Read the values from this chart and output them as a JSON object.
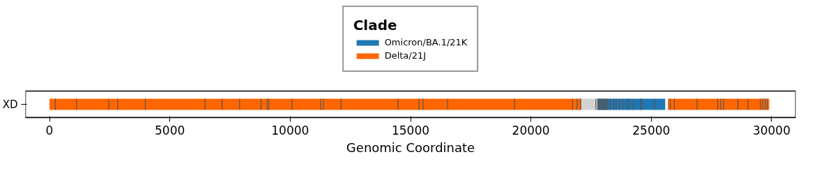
{
  "chart_data": {
    "type": "bar",
    "orientation": "horizontal",
    "categories": [
      "XD"
    ],
    "series": [
      {
        "name": "Omicron/BA.1/21K",
        "color": "#1f77b4",
        "values": [
          2810
        ],
        "base": [
          22770
        ]
      },
      {
        "name": "Delta/21J",
        "color": "#ff6600",
        "values": [
          22100
        ],
        "base": [
          0
        ]
      },
      {
        "color": "#d3d3d3",
        "values": [
          670
        ],
        "base": [
          22100
        ]
      },
      {
        "color": "#ff6600",
        "values": [
          4210
        ],
        "base": [
          25690
        ]
      }
    ],
    "ref_lines": [
      {
        "axis": "x",
        "value": 240,
        "color": "#555555"
      },
      {
        "axis": "x",
        "value": 1120,
        "color": "#555555"
      },
      {
        "axis": "x",
        "value": 2460,
        "color": "#555555"
      },
      {
        "axis": "x",
        "value": 2830,
        "color": "#555555"
      },
      {
        "axis": "x",
        "value": 3980,
        "color": "#555555"
      },
      {
        "axis": "x",
        "value": 6460,
        "color": "#555555"
      },
      {
        "axis": "x",
        "value": 7170,
        "color": "#555555"
      },
      {
        "axis": "x",
        "value": 7900,
        "color": "#555555"
      },
      {
        "axis": "x",
        "value": 8780,
        "color": "#555555"
      },
      {
        "axis": "x",
        "value": 9040,
        "color": "#555555"
      },
      {
        "axis": "x",
        "value": 9110,
        "color": "#555555"
      },
      {
        "axis": "x",
        "value": 10070,
        "color": "#555555"
      },
      {
        "axis": "x",
        "value": 11260,
        "color": "#555555"
      },
      {
        "axis": "x",
        "value": 11380,
        "color": "#555555"
      },
      {
        "axis": "x",
        "value": 12110,
        "color": "#555555"
      },
      {
        "axis": "x",
        "value": 14480,
        "color": "#555555"
      },
      {
        "axis": "x",
        "value": 15350,
        "color": "#555555"
      },
      {
        "axis": "x",
        "value": 15520,
        "color": "#555555"
      },
      {
        "axis": "x",
        "value": 16540,
        "color": "#555555"
      },
      {
        "axis": "x",
        "value": 19320,
        "color": "#555555"
      },
      {
        "axis": "x",
        "value": 21730,
        "color": "#555555"
      },
      {
        "axis": "x",
        "value": 21920,
        "color": "#555555"
      },
      {
        "axis": "x",
        "value": 22060,
        "color": "#555555"
      },
      {
        "axis": "x",
        "value": 22700,
        "color": "#555555"
      },
      {
        "axis": "x",
        "value": 22780,
        "color": "#555555"
      },
      {
        "axis": "x",
        "value": 22810,
        "color": "#555555"
      },
      {
        "axis": "x",
        "value": 22860,
        "color": "#555555"
      },
      {
        "axis": "x",
        "value": 22910,
        "color": "#555555"
      },
      {
        "axis": "x",
        "value": 22960,
        "color": "#555555"
      },
      {
        "axis": "x",
        "value": 23010,
        "color": "#555555"
      },
      {
        "axis": "x",
        "value": 23060,
        "color": "#555555"
      },
      {
        "axis": "x",
        "value": 23100,
        "color": "#555555"
      },
      {
        "axis": "x",
        "value": 23150,
        "color": "#555555"
      },
      {
        "axis": "x",
        "value": 23200,
        "color": "#555555"
      },
      {
        "axis": "x",
        "value": 23300,
        "color": "#555555"
      },
      {
        "axis": "x",
        "value": 23440,
        "color": "#555555"
      },
      {
        "axis": "x",
        "value": 23540,
        "color": "#555555"
      },
      {
        "axis": "x",
        "value": 23680,
        "color": "#555555"
      },
      {
        "axis": "x",
        "value": 23830,
        "color": "#555555"
      },
      {
        "axis": "x",
        "value": 23970,
        "color": "#555555"
      },
      {
        "axis": "x",
        "value": 24070,
        "color": "#555555"
      },
      {
        "axis": "x",
        "value": 24260,
        "color": "#555555"
      },
      {
        "axis": "x",
        "value": 24550,
        "color": "#555555"
      },
      {
        "axis": "x",
        "value": 24600,
        "color": "#555555"
      },
      {
        "axis": "x",
        "value": 25140,
        "color": "#555555"
      },
      {
        "axis": "x",
        "value": 25790,
        "color": "#555555"
      },
      {
        "axis": "x",
        "value": 25960,
        "color": "#555555"
      },
      {
        "axis": "x",
        "value": 26900,
        "color": "#555555"
      },
      {
        "axis": "x",
        "value": 27760,
        "color": "#555555"
      },
      {
        "axis": "x",
        "value": 27890,
        "color": "#555555"
      },
      {
        "axis": "x",
        "value": 28010,
        "color": "#555555"
      },
      {
        "axis": "x",
        "value": 28600,
        "color": "#555555"
      },
      {
        "axis": "x",
        "value": 29020,
        "color": "#555555"
      },
      {
        "axis": "x",
        "value": 29530,
        "color": "#555555"
      },
      {
        "axis": "x",
        "value": 29630,
        "color": "#555555"
      },
      {
        "axis": "x",
        "value": 29730,
        "color": "#555555"
      },
      {
        "axis": "x",
        "value": 29820,
        "color": "#555555"
      }
    ],
    "xlim": [
      -1000,
      31000
    ],
    "xticks": [
      0,
      5000,
      10000,
      15000,
      20000,
      25000,
      30000
    ],
    "xlabel": "Genomic Coordinate",
    "legend_title": "Clade",
    "legend": "top",
    "grid": false
  }
}
